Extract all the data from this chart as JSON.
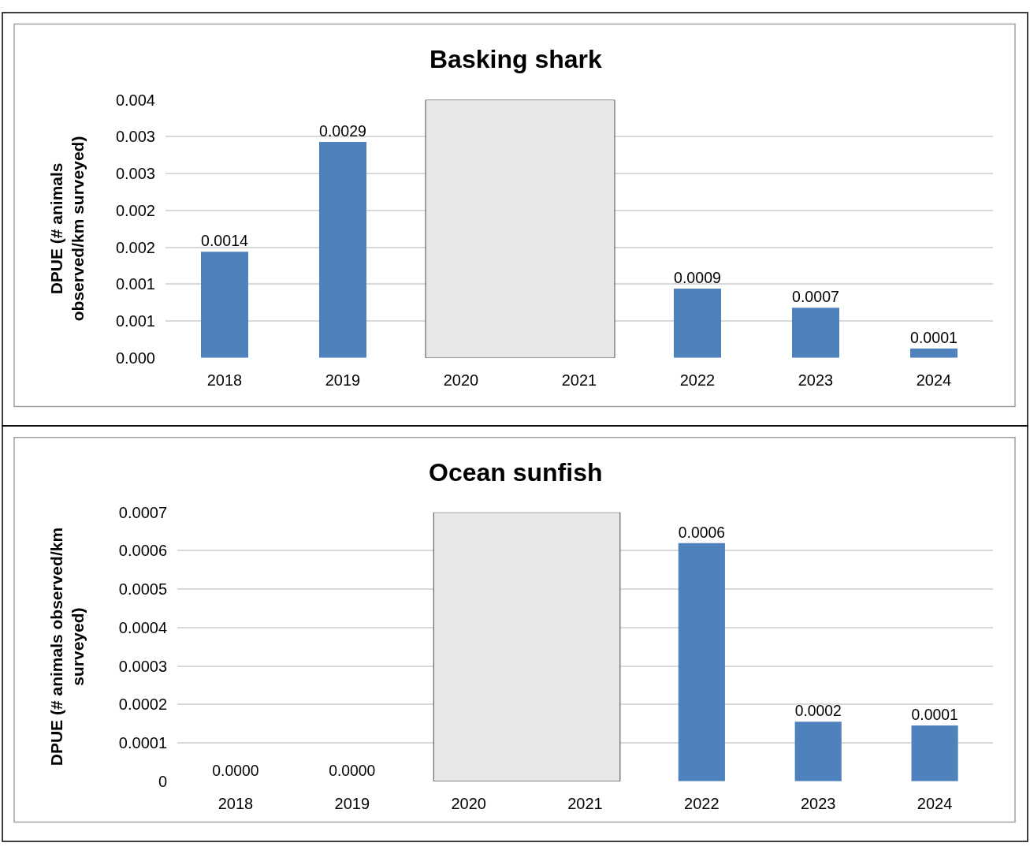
{
  "chart_data": [
    {
      "type": "bar",
      "title": "Basking shark",
      "ylabel": "DPUE (# animals\nobserved/km surveyed)",
      "categories": [
        "2018",
        "2019",
        "2020",
        "2021",
        "2022",
        "2023",
        "2024"
      ],
      "values": [
        0.00144,
        0.00293,
        null,
        null,
        0.00094,
        0.00068,
        0.000126
      ],
      "value_labels": [
        "0.0014",
        "0.0029",
        null,
        null,
        "0.0009",
        "0.0007",
        "0.0001"
      ],
      "color": "#4f81bd",
      "ylim": [
        0,
        0.0035
      ],
      "yticks": [
        {
          "value": 0,
          "label": "0.000"
        },
        {
          "value": 0.0005,
          "label": "0.001"
        },
        {
          "value": 0.001,
          "label": "0.001"
        },
        {
          "value": 0.0015,
          "label": "0.002"
        },
        {
          "value": 0.002,
          "label": "0.002"
        },
        {
          "value": 0.0025,
          "label": "0.003"
        },
        {
          "value": 0.003,
          "label": "0.003"
        },
        {
          "value": 0.0035,
          "label": "0.004"
        }
      ],
      "grid": "y",
      "bands": [
        {
          "axis": "x",
          "from": "2020",
          "to": "2021",
          "color": "#e8e8e8"
        }
      ]
    },
    {
      "type": "bar",
      "title": "Ocean sunfish",
      "ylabel": "DPUE (# animals observed/km\nsurveyed)",
      "categories": [
        "2018",
        "2019",
        "2020",
        "2021",
        "2022",
        "2023",
        "2024"
      ],
      "values": [
        0,
        0,
        null,
        null,
        0.00062,
        0.000155,
        0.000145
      ],
      "value_labels": [
        "0.0000",
        "0.0000",
        null,
        null,
        "0.0006",
        "0.0002",
        "0.0001"
      ],
      "color": "#4f81bd",
      "ylim": [
        0,
        0.0007
      ],
      "yticks": [
        0,
        0.0001,
        0.0002,
        0.0003,
        0.0004,
        0.0005,
        0.0006,
        0.0007
      ],
      "grid": "y",
      "bands": [
        {
          "axis": "x",
          "from": "2020",
          "to": "2021",
          "color": "#e8e8e8"
        }
      ]
    }
  ]
}
